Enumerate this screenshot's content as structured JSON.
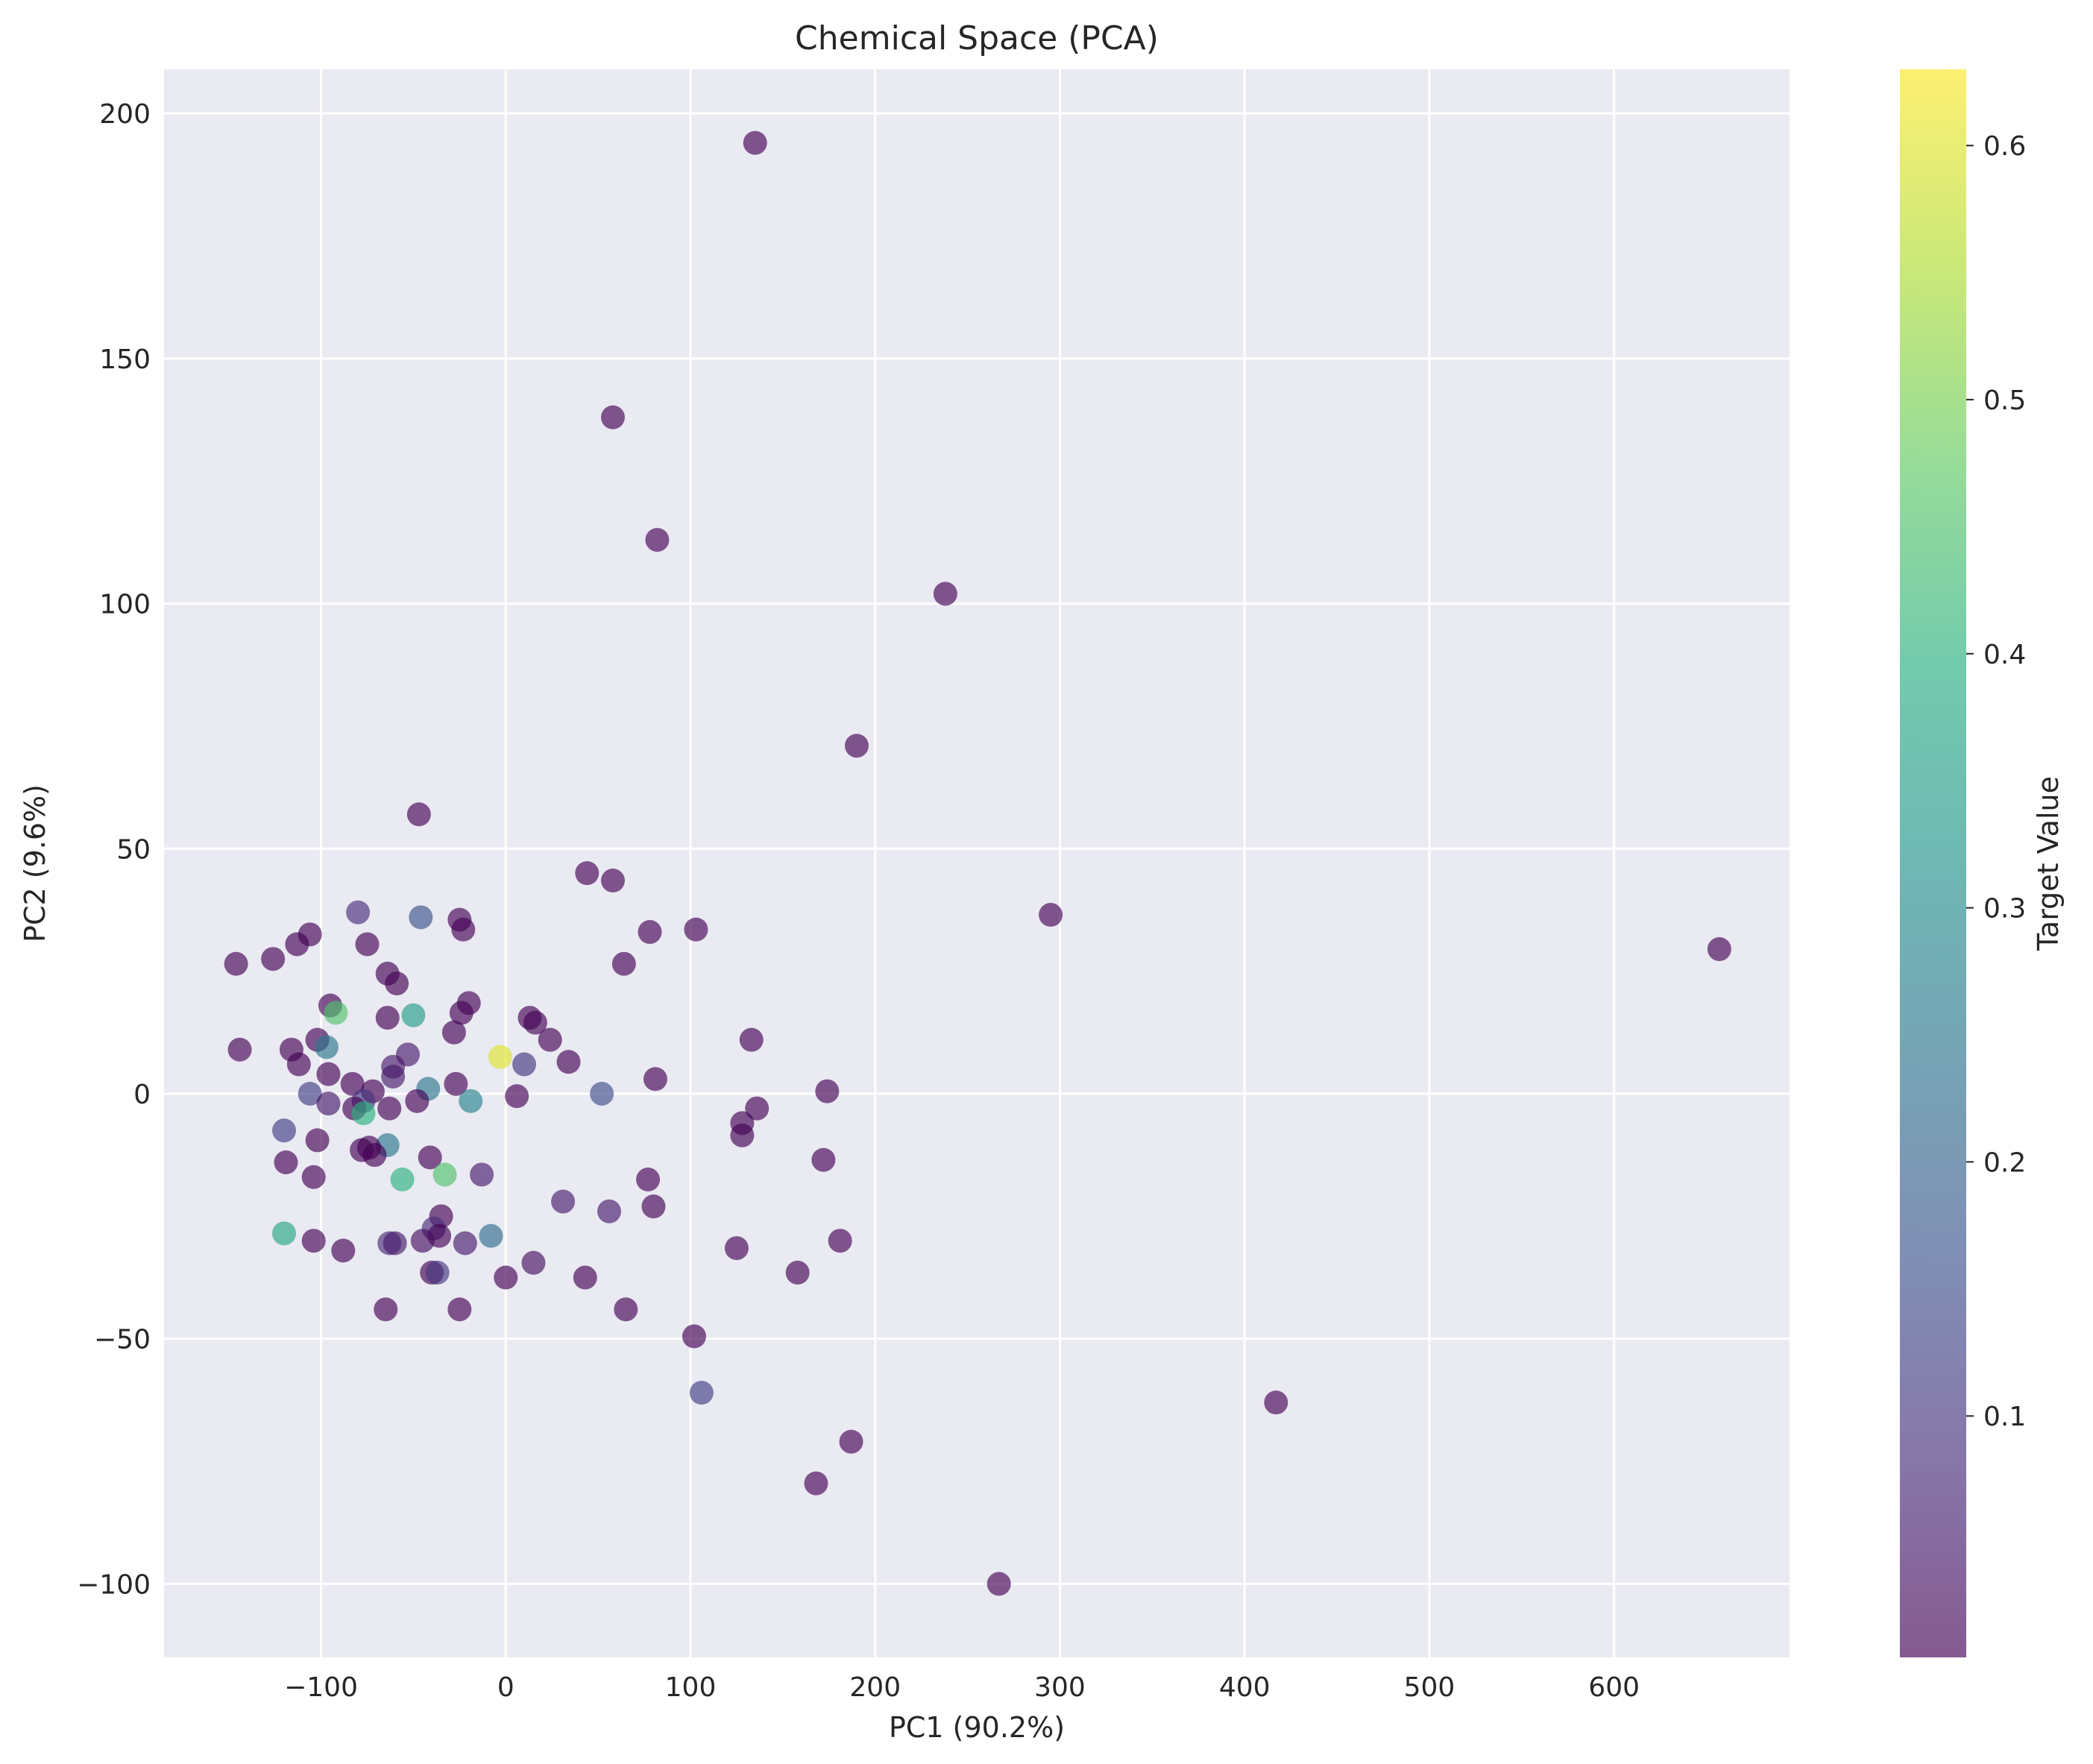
{
  "chart_data": {
    "type": "scatter",
    "title": "Chemical Space (PCA)",
    "xlabel": "PC1 (90.2%)",
    "ylabel": "PC2 (9.6%)",
    "xlim": [
      -185,
      695
    ],
    "ylim": [
      -115,
      209
    ],
    "xticks": [
      {
        "value": -100,
        "label": "−100"
      },
      {
        "value": 0,
        "label": "0"
      },
      {
        "value": 100,
        "label": "100"
      },
      {
        "value": 200,
        "label": "200"
      },
      {
        "value": 300,
        "label": "300"
      },
      {
        "value": 400,
        "label": "400"
      },
      {
        "value": 500,
        "label": "500"
      },
      {
        "value": 600,
        "label": "600"
      }
    ],
    "yticks": [
      {
        "value": -100,
        "label": "−100"
      },
      {
        "value": -50,
        "label": "−50"
      },
      {
        "value": 0,
        "label": "0"
      },
      {
        "value": 50,
        "label": "50"
      },
      {
        "value": 100,
        "label": "100"
      },
      {
        "value": 150,
        "label": "150"
      },
      {
        "value": 200,
        "label": "200"
      }
    ],
    "grid": true,
    "background_color": "#eaeaf2",
    "grid_color": "#ffffff",
    "colormap": "viridis",
    "marker_alpha": 0.65,
    "colorbar": {
      "label": "Target Value",
      "range": [
        0.005,
        0.63
      ],
      "ticks": [
        {
          "value": 0.1,
          "label": "0.1"
        },
        {
          "value": 0.2,
          "label": "0.2"
        },
        {
          "value": 0.3,
          "label": "0.3"
        },
        {
          "value": 0.4,
          "label": "0.4"
        },
        {
          "value": 0.5,
          "label": "0.5"
        },
        {
          "value": 0.6,
          "label": "0.6"
        }
      ]
    },
    "points": [
      {
        "x": 135,
        "y": 194,
        "c": 0.0
      },
      {
        "x": 58,
        "y": 138,
        "c": 0.0
      },
      {
        "x": 82,
        "y": 113,
        "c": 0.0
      },
      {
        "x": 238,
        "y": 102,
        "c": 0.0
      },
      {
        "x": 190,
        "y": 71,
        "c": 0.0
      },
      {
        "x": -47,
        "y": 57,
        "c": 0.0
      },
      {
        "x": 44,
        "y": 45,
        "c": 0.0
      },
      {
        "x": 58,
        "y": 43.5,
        "c": 0.0
      },
      {
        "x": 295,
        "y": 36.5,
        "c": 0.0
      },
      {
        "x": 657,
        "y": 29.5,
        "c": 0.0
      },
      {
        "x": 103,
        "y": 33.5,
        "c": 0.0
      },
      {
        "x": 78,
        "y": 33,
        "c": 0.0
      },
      {
        "x": -80,
        "y": 37,
        "c": 0.08
      },
      {
        "x": -46,
        "y": 36,
        "c": 0.16
      },
      {
        "x": -25,
        "y": 35.5,
        "c": 0.0
      },
      {
        "x": -23,
        "y": 33.5,
        "c": 0.0
      },
      {
        "x": -106,
        "y": 32.5,
        "c": 0.0
      },
      {
        "x": -113,
        "y": 30.5,
        "c": 0.0
      },
      {
        "x": -75,
        "y": 30.5,
        "c": 0.0
      },
      {
        "x": -126,
        "y": 27.5,
        "c": 0.0
      },
      {
        "x": -146,
        "y": 26.5,
        "c": 0.0
      },
      {
        "x": 64,
        "y": 26.5,
        "c": 0.0
      },
      {
        "x": -64,
        "y": 24.5,
        "c": 0.0
      },
      {
        "x": -59,
        "y": 22.5,
        "c": 0.0
      },
      {
        "x": -95,
        "y": 18,
        "c": 0.0
      },
      {
        "x": -20,
        "y": 18.5,
        "c": 0.0
      },
      {
        "x": -92,
        "y": 16.5,
        "c": 0.45
      },
      {
        "x": -50,
        "y": 16,
        "c": 0.35
      },
      {
        "x": -24,
        "y": 16.5,
        "c": 0.0
      },
      {
        "x": -64,
        "y": 15.5,
        "c": 0.0
      },
      {
        "x": 13,
        "y": 15.5,
        "c": 0.0
      },
      {
        "x": 16,
        "y": 14.5,
        "c": 0.0
      },
      {
        "x": -28,
        "y": 12.5,
        "c": 0.0
      },
      {
        "x": 24,
        "y": 11,
        "c": 0.0
      },
      {
        "x": 133,
        "y": 11,
        "c": 0.0
      },
      {
        "x": -102,
        "y": 11,
        "c": 0.0
      },
      {
        "x": -97,
        "y": 9.5,
        "c": 0.25
      },
      {
        "x": -144,
        "y": 9,
        "c": 0.0
      },
      {
        "x": -116,
        "y": 9,
        "c": 0.0
      },
      {
        "x": -53,
        "y": 8,
        "c": 0.05
      },
      {
        "x": -3,
        "y": 7.5,
        "c": 0.6
      },
      {
        "x": 34,
        "y": 6.5,
        "c": 0.0
      },
      {
        "x": 10,
        "y": 6,
        "c": 0.1
      },
      {
        "x": -112,
        "y": 6,
        "c": 0.0
      },
      {
        "x": -61,
        "y": 5.5,
        "c": 0.05
      },
      {
        "x": -96,
        "y": 4,
        "c": 0.0
      },
      {
        "x": -61,
        "y": 3.5,
        "c": 0.05
      },
      {
        "x": 81,
        "y": 3,
        "c": 0.0
      },
      {
        "x": -83,
        "y": 2,
        "c": 0.0
      },
      {
        "x": -27,
        "y": 2,
        "c": 0.0
      },
      {
        "x": -42,
        "y": 1,
        "c": 0.25
      },
      {
        "x": -72,
        "y": 0.5,
        "c": 0.0
      },
      {
        "x": 174,
        "y": 0.5,
        "c": 0.0
      },
      {
        "x": 52,
        "y": 0,
        "c": 0.15
      },
      {
        "x": -106,
        "y": 0,
        "c": 0.12
      },
      {
        "x": 6,
        "y": -0.5,
        "c": 0.0
      },
      {
        "x": -48,
        "y": -1.5,
        "c": 0.0
      },
      {
        "x": -19,
        "y": -1.5,
        "c": 0.28
      },
      {
        "x": -77,
        "y": -1.5,
        "c": 0.1
      },
      {
        "x": -96,
        "y": -2,
        "c": 0.05
      },
      {
        "x": 136,
        "y": -3,
        "c": 0.0
      },
      {
        "x": -63,
        "y": -3,
        "c": 0.0
      },
      {
        "x": -82,
        "y": -3,
        "c": 0.0
      },
      {
        "x": -77,
        "y": -4,
        "c": 0.4
      },
      {
        "x": 128,
        "y": -6,
        "c": 0.0
      },
      {
        "x": -120,
        "y": -7.5,
        "c": 0.12
      },
      {
        "x": 128,
        "y": -8.5,
        "c": 0.0
      },
      {
        "x": -102,
        "y": -9.5,
        "c": 0.0
      },
      {
        "x": -64,
        "y": -10.5,
        "c": 0.25
      },
      {
        "x": -78,
        "y": -11.5,
        "c": 0.0
      },
      {
        "x": -74,
        "y": -11,
        "c": 0.0
      },
      {
        "x": -71,
        "y": -12.5,
        "c": 0.0
      },
      {
        "x": -41,
        "y": -13,
        "c": 0.0
      },
      {
        "x": 172,
        "y": -13.5,
        "c": 0.0
      },
      {
        "x": -119,
        "y": -14,
        "c": 0.0
      },
      {
        "x": -33,
        "y": -16.5,
        "c": 0.45
      },
      {
        "x": -13,
        "y": -16.5,
        "c": 0.05
      },
      {
        "x": -104,
        "y": -17,
        "c": 0.0
      },
      {
        "x": -56,
        "y": -17.5,
        "c": 0.4
      },
      {
        "x": 77,
        "y": -17.5,
        "c": 0.0
      },
      {
        "x": 31,
        "y": -22,
        "c": 0.05
      },
      {
        "x": 80,
        "y": -23,
        "c": 0.0
      },
      {
        "x": 56,
        "y": -24,
        "c": 0.05
      },
      {
        "x": -35,
        "y": -25,
        "c": 0.0
      },
      {
        "x": -39,
        "y": -27.5,
        "c": 0.08
      },
      {
        "x": -120,
        "y": -28.5,
        "c": 0.38
      },
      {
        "x": -8,
        "y": -29,
        "c": 0.22
      },
      {
        "x": -36,
        "y": -29,
        "c": 0.0
      },
      {
        "x": -45,
        "y": -30,
        "c": 0.03
      },
      {
        "x": -104,
        "y": -30,
        "c": 0.0
      },
      {
        "x": 181,
        "y": -30,
        "c": 0.0
      },
      {
        "x": -63,
        "y": -30.5,
        "c": 0.08
      },
      {
        "x": -60,
        "y": -30.5,
        "c": 0.05
      },
      {
        "x": -22,
        "y": -30.5,
        "c": 0.05
      },
      {
        "x": 125,
        "y": -31.5,
        "c": 0.0
      },
      {
        "x": -88,
        "y": -32,
        "c": 0.0
      },
      {
        "x": 15,
        "y": -34.5,
        "c": 0.03
      },
      {
        "x": -40,
        "y": -36.5,
        "c": 0.0
      },
      {
        "x": -37,
        "y": -36.5,
        "c": 0.1
      },
      {
        "x": 158,
        "y": -36.5,
        "c": 0.0
      },
      {
        "x": 0,
        "y": -37.5,
        "c": 0.0
      },
      {
        "x": 43,
        "y": -37.5,
        "c": 0.0
      },
      {
        "x": -65,
        "y": -44,
        "c": 0.0
      },
      {
        "x": -25,
        "y": -44,
        "c": 0.0
      },
      {
        "x": 65,
        "y": -44,
        "c": 0.0
      },
      {
        "x": 102,
        "y": -49.5,
        "c": 0.0
      },
      {
        "x": 106,
        "y": -61,
        "c": 0.12
      },
      {
        "x": 417,
        "y": -63,
        "c": 0.0
      },
      {
        "x": 187,
        "y": -71,
        "c": 0.0
      },
      {
        "x": 168,
        "y": -79.5,
        "c": 0.0
      },
      {
        "x": 267,
        "y": -100,
        "c": 0.0
      }
    ]
  }
}
